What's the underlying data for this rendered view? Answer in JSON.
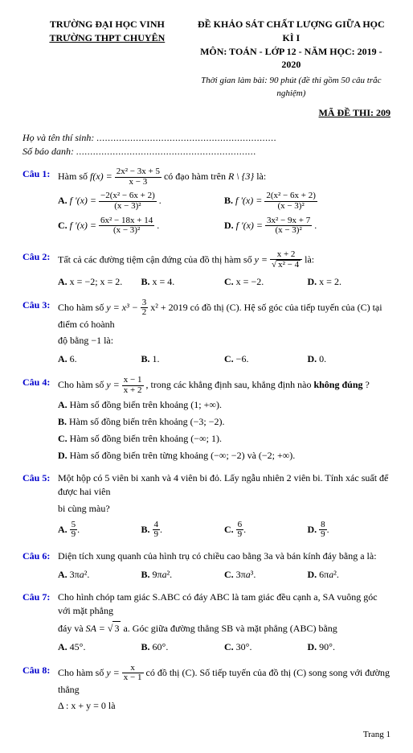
{
  "header": {
    "school_top": "TRƯỜNG ĐẠI HỌC VINH",
    "school_bottom": "TRƯỜNG THPT CHUYÊN",
    "title": "ĐỀ KHẢO SÁT CHẤT LƯỢNG GIỮA HỌC KÌ I",
    "subject": "MÔN: TOÁN - LỚP 12 - NĂM HỌC: 2019 - 2020",
    "time": "Thời gian làm bài: 90 phút (đề thi gồm 50 câu trắc nghiệm)",
    "code_label": "MÃ ĐỀ THI: 209"
  },
  "student": {
    "name_label": "Họ và tên thí sinh:",
    "id_label": "Số báo danh:",
    "dots": "................................................................"
  },
  "q1": {
    "label": "Câu 1:",
    "pre": "Hàm số ",
    "f": "f(x) = ",
    "num": "2x² − 3x + 5",
    "den": "x − 3",
    "post": " có đạo hàm trên ",
    "set": "R \\ {3}",
    "tail": " là:",
    "A": "A.",
    "An": "−2(x² − 6x + 2)",
    "Ad": "(x − 3)²",
    "Adot": ".",
    "B": "B.",
    "Bn": "2(x² − 6x + 2)",
    "Bd": "(x − 3)²",
    "C": "C.",
    "Cn": "6x² − 18x + 14",
    "Cd": "(x − 3)²",
    "Cdot": ".",
    "D": "D.",
    "Dn": "3x² − 9x + 7",
    "Dd": "(x − 3)²",
    "Ddot": "."
  },
  "q2": {
    "label": "Câu 2:",
    "text": "Tất cả các đường tiệm cận đứng của đồ thị hàm số ",
    "y": "y = ",
    "num": "x + 2",
    "den_s": "x² − 4",
    "tail": " là:",
    "A": "A. x = −2; x = 2.",
    "B": "B. x = 4.",
    "C": "C. x = −2.",
    "D": "D. x = 2."
  },
  "q3": {
    "label": "Câu 3:",
    "pre": "Cho hàm số ",
    "y": "y = x³ − ",
    "fn": "3",
    "fd": "2",
    "mid": "x² + 2019 có đồ thị (C). Hệ số góc của tiếp tuyến của (C) tại điểm có hoành",
    "line2": "độ bằng −1 là:",
    "A": "A. 6.",
    "B": "B. 1.",
    "C": "C. −6.",
    "D": "D. 0."
  },
  "q4": {
    "label": "Câu 4:",
    "pre": "Cho hàm số ",
    "y": "y = ",
    "num": "x − 1",
    "den": "x + 2",
    "post": ", trong các khẳng định sau, khẳng định nào ",
    "bold": "không đúng",
    "tail": "?",
    "sA": "A. Hàm số đồng biến trên khoảng (1; +∞).",
    "sB": "B. Hàm số đồng biến trên khoảng (−3; −2).",
    "sC": "C. Hàm số đồng biến trên khoảng (−∞; 1).",
    "sD": "D. Hàm số đồng biến trên từng khoảng (−∞; −2) và (−2; +∞)."
  },
  "q5": {
    "label": "Câu 5:",
    "line1": "Một hộp có 5 viên bi xanh và 4 viên bi đỏ. Lấy ngẫu nhiên 2 viên bi. Tính xác suất để được hai viên",
    "line2": "bi cùng màu?",
    "A": "A.",
    "An": "5",
    "Ad": "9",
    "Adot": ".",
    "B": "B.",
    "Bn": "4",
    "Bd": "9",
    "Bdot": ".",
    "C": "C.",
    "Cn": "6",
    "Cd": "9",
    "Cdot": ".",
    "D": "D.",
    "Dn": "8",
    "Dd": "9",
    "Ddot": "."
  },
  "q6": {
    "label": "Câu 6:",
    "text": "Diện tích xung quanh của hình trụ có chiều cao bằng 3a và bán kính đáy bằng a là:",
    "A": "A. 3πa².",
    "B": "B. 9πa².",
    "C": "C. 3πa³.",
    "D": "D. 6πa²."
  },
  "q7": {
    "label": "Câu 7:",
    "l1": "Cho hình chóp tam giác S.ABC có đáy ABC là tam giác đều cạnh a, SA vuông góc với mặt phẳng",
    "l2a": "đáy và ",
    "sa": "SA = ",
    "sqrt": "3",
    "l2b": "a. Góc giữa đường thẳng SB và mặt phẳng (ABC) bằng",
    "A": "A. 45°.",
    "B": "B. 60°.",
    "C": "C. 30°.",
    "D": "D. 90°."
  },
  "q8": {
    "label": "Câu 8:",
    "pre": "Cho hàm số ",
    "y": "y = ",
    "num": "x",
    "den": "x − 1",
    "mid": " có đồ thị (C). Số tiếp tuyến của đồ thị (C) song song với đường thẳng",
    "l2": "Δ : x + y = 0 là"
  },
  "footer": "Trang 1"
}
